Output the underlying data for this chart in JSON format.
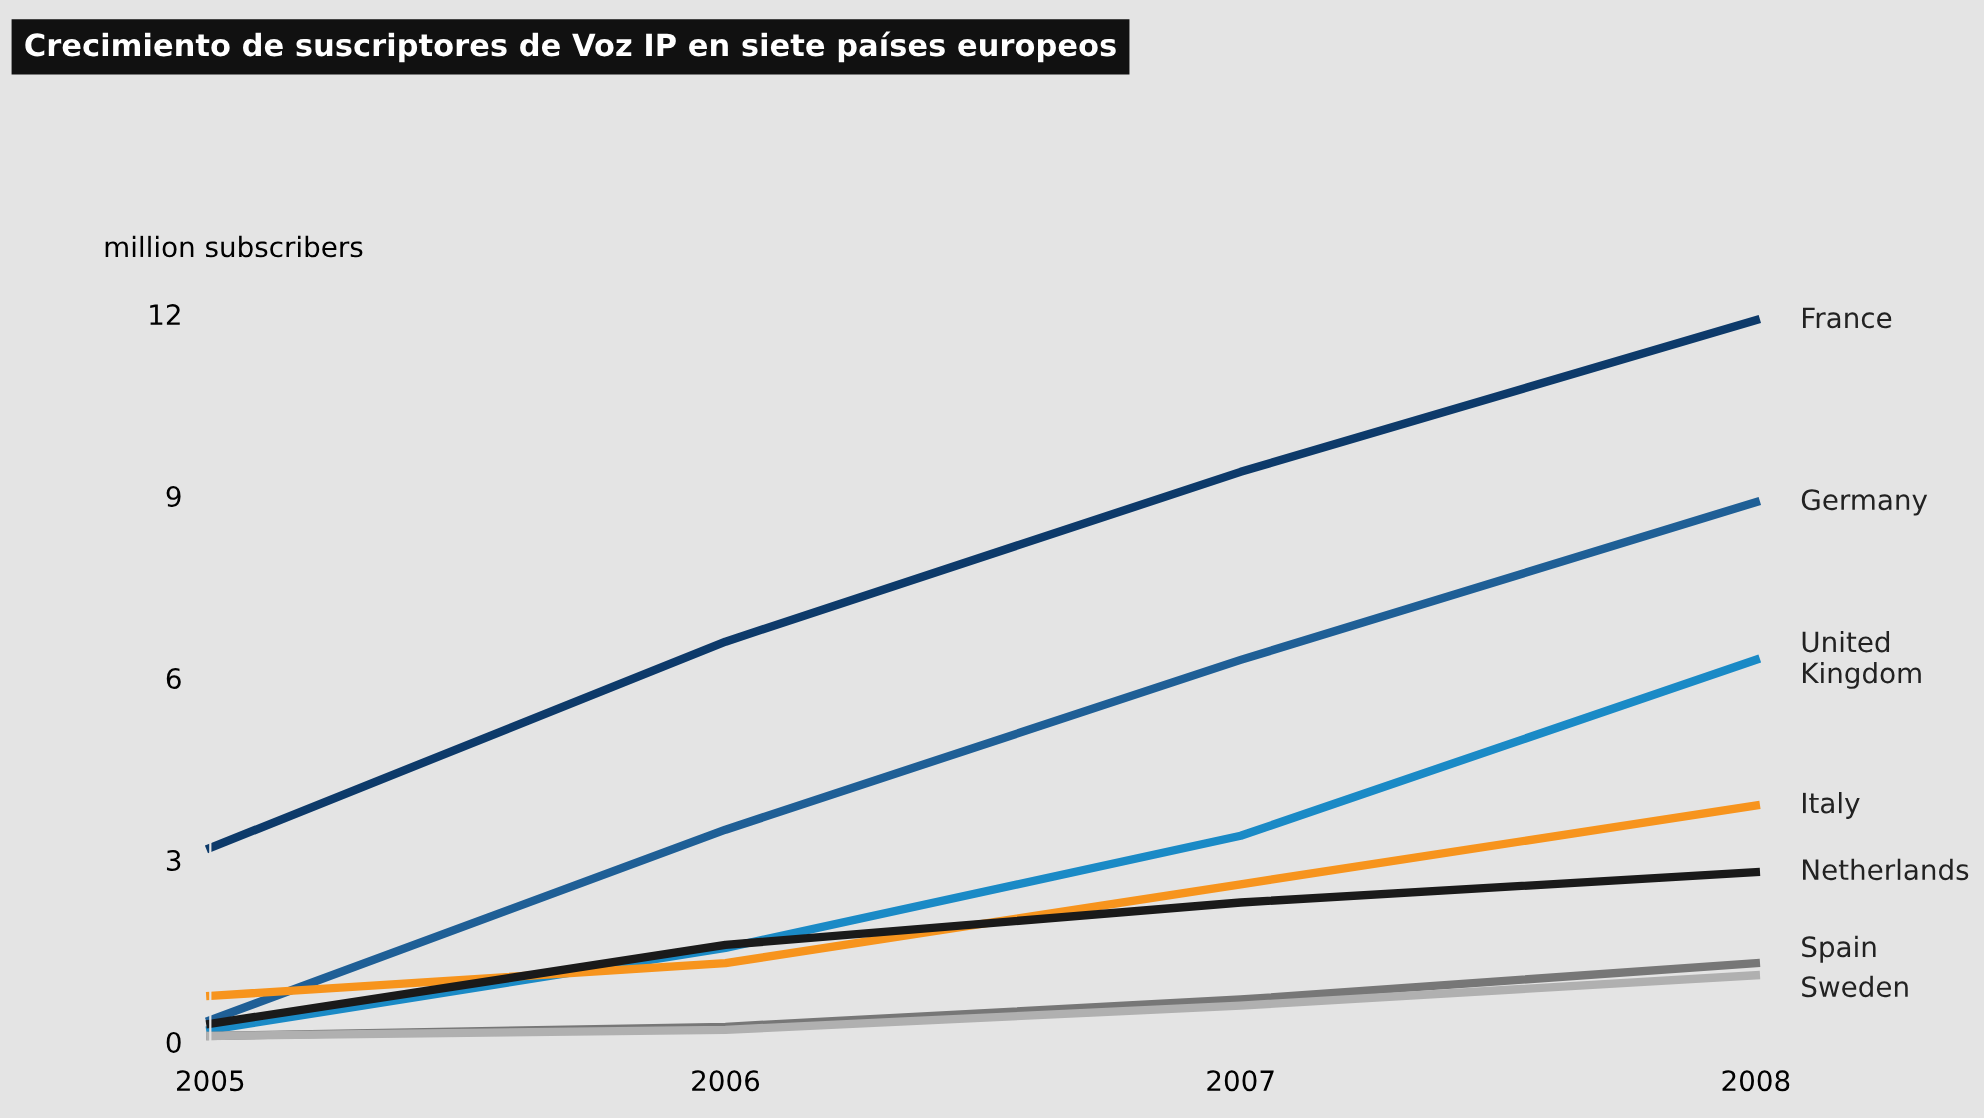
{
  "chart_data": {
    "type": "line",
    "title": "Crecimiento de suscriptores de Voz IP en siete países europeos",
    "ylabel": "million subscribers",
    "x": [
      2005,
      2006,
      2007,
      2008
    ],
    "xlim": [
      2005,
      2008
    ],
    "xticks": [
      2005,
      2006,
      2007,
      2008
    ],
    "ylim": [
      0,
      12
    ],
    "yticks": [
      0,
      3,
      6,
      9,
      12
    ],
    "grid": false,
    "legend": false,
    "marker": "none",
    "line_style": "solid",
    "series": [
      {
        "name": "France",
        "color": "#0d3a6a",
        "values": [
          3.2,
          6.6,
          9.4,
          11.9
        ]
      },
      {
        "name": "Germany",
        "color": "#1f5f96",
        "values": [
          0.36,
          3.5,
          6.3,
          8.9
        ]
      },
      {
        "name": "United\nKingdom",
        "color": "#1a8ac6",
        "values": [
          0.2,
          1.55,
          3.4,
          6.3
        ]
      },
      {
        "name": "Italy",
        "color": "#f7941d",
        "values": [
          0.76,
          1.3,
          2.6,
          3.9
        ]
      },
      {
        "name": "Netherlands",
        "color": "#1a1a1a",
        "values": [
          0.3,
          1.6,
          2.3,
          2.8
        ]
      },
      {
        "name": "Spain",
        "color": "#777777",
        "values": [
          0.1,
          0.25,
          0.7,
          1.3
        ]
      },
      {
        "name": "Sweden",
        "color": "#b0b0b0",
        "values": [
          0.1,
          0.2,
          0.6,
          1.1
        ]
      }
    ]
  }
}
